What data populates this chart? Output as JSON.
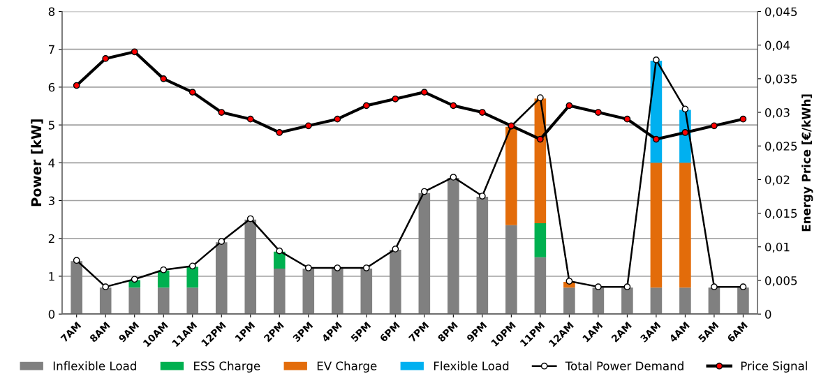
{
  "chart_data": {
    "type": "bar",
    "stacked": true,
    "categories": [
      "7AM",
      "8AM",
      "9AM",
      "10AM",
      "11AM",
      "12PM",
      "1PM",
      "2PM",
      "3PM",
      "4PM",
      "5PM",
      "6PM",
      "7PM",
      "8PM",
      "9PM",
      "10PM",
      "11PM",
      "12AM",
      "1AM",
      "2AM",
      "3AM",
      "4AM",
      "5AM",
      "6AM"
    ],
    "ylabel": "Power [kW]",
    "y2label": "Energy Price [€/kWh]",
    "ylim": [
      0,
      8
    ],
    "yticks": [
      0,
      1,
      2,
      3,
      4,
      5,
      6,
      7,
      8
    ],
    "y2lim": [
      0,
      0.045
    ],
    "y2ticks": [
      {
        "value": 0,
        "label": "0"
      },
      {
        "value": 0.005,
        "label": "0,005"
      },
      {
        "value": 0.01,
        "label": "0,01"
      },
      {
        "value": 0.015,
        "label": "0,015"
      },
      {
        "value": 0.02,
        "label": "0,02"
      },
      {
        "value": 0.025,
        "label": "0,025"
      },
      {
        "value": 0.03,
        "label": "0,03"
      },
      {
        "value": 0.035,
        "label": "0,035"
      },
      {
        "value": 0.04,
        "label": "0,04"
      },
      {
        "value": 0.045,
        "label": "0,045"
      }
    ],
    "grid": "y",
    "legend": "bottom",
    "series": [
      {
        "name": "Inflexible Load",
        "color": "#808080",
        "values": [
          1.4,
          0.7,
          0.7,
          0.7,
          0.7,
          1.9,
          2.5,
          1.2,
          1.2,
          1.2,
          1.2,
          1.7,
          3.2,
          3.6,
          3.1,
          2.35,
          1.5,
          0.7,
          0.7,
          0.7,
          0.7,
          0.7,
          0.7,
          0.7
        ]
      },
      {
        "name": "ESS Charge",
        "color": "#00b050",
        "values": [
          null,
          null,
          0.2,
          0.45,
          0.55,
          null,
          null,
          0.45,
          null,
          null,
          null,
          null,
          null,
          null,
          null,
          null,
          0.9,
          null,
          null,
          null,
          null,
          null,
          null,
          null
        ]
      },
      {
        "name": "EV Charge",
        "color": "#e36c0a",
        "values": [
          null,
          null,
          null,
          null,
          null,
          null,
          null,
          null,
          null,
          null,
          null,
          null,
          null,
          null,
          null,
          2.6,
          3.3,
          0.15,
          null,
          null,
          3.3,
          3.3,
          null,
          null
        ]
      },
      {
        "name": "Flexible Load",
        "color": "#00b0f0",
        "values": [
          null,
          null,
          null,
          null,
          null,
          null,
          null,
          null,
          null,
          null,
          null,
          null,
          null,
          null,
          null,
          null,
          null,
          null,
          null,
          null,
          2.7,
          1.4,
          null,
          null
        ]
      },
      {
        "name": "Total Power Demand",
        "type": "line",
        "color": "#ffffff",
        "marker": "circle",
        "values": [
          1.42,
          0.72,
          0.92,
          1.17,
          1.27,
          1.92,
          2.52,
          1.67,
          1.22,
          1.22,
          1.22,
          1.72,
          3.24,
          3.62,
          3.12,
          4.97,
          5.72,
          0.87,
          0.72,
          0.72,
          6.72,
          5.42,
          0.72,
          0.72
        ]
      },
      {
        "name": "Price Signal",
        "type": "line",
        "axis": "y2",
        "color": "#ff0000",
        "marker": "circle",
        "values": [
          0.034,
          0.038,
          0.039,
          0.035,
          0.033,
          0.03,
          0.029,
          0.027,
          0.028,
          0.029,
          0.031,
          0.032,
          0.033,
          0.031,
          0.03,
          0.028,
          0.026,
          0.031,
          0.03,
          0.029,
          0.026,
          0.027,
          0.028,
          0.029
        ]
      }
    ]
  }
}
